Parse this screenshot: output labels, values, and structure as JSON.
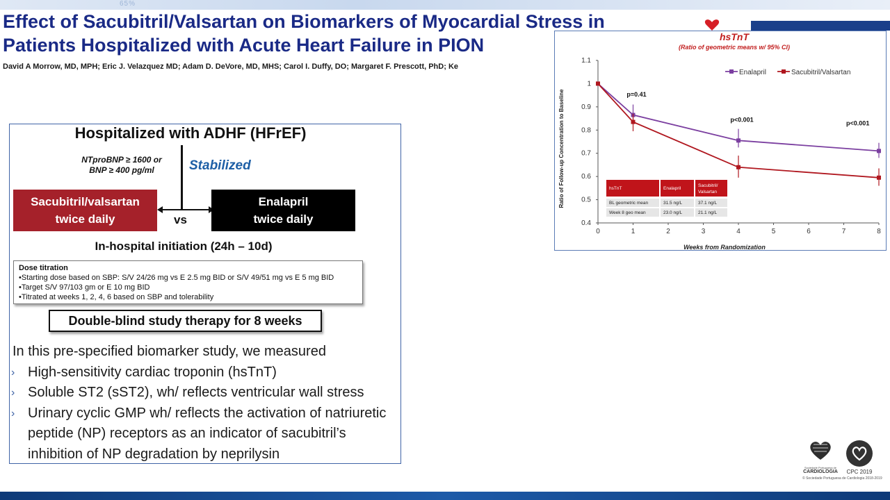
{
  "header": {
    "band_text": "65%",
    "title_line1": "Effect of Sacubitril/Valsartan on Biomarkers of Myocardial Stress in",
    "title_line2": "Patients Hospitalized with Acute Heart Failure in PION",
    "authors": "David A Morrow, MD, MPH; Eric J. Velazquez MD; Adam D. DeVore, MD, MHS; Carol I. Duffy, DO; Margaret F. Prescott, PhD; Ke"
  },
  "design": {
    "heading": "Hospitalized with ADHF (HFrEF)",
    "criteria_line1": "NTproBNP ≥ 1600 or",
    "criteria_line2": "BNP ≥ 400 pg/ml",
    "stabilized": "Stabilized",
    "arm_sv_line1": "Sacubitril/valsartan",
    "arm_sv_line2": "twice daily",
    "vs": "vs",
    "arm_e_line1": "Enalapril",
    "arm_e_line2": "twice daily",
    "initiation": "In-hospital initiation (24h – 10d)",
    "titration_title": "Dose titration",
    "titration_items": [
      "•Starting dose based on SBP:  S/V 24/26 mg vs E 2.5 mg BID or S/V 49/51 mg vs E 5 mg BID",
      "•Target S/V 97/103 gm or E 10 mg BID",
      "•Titrated at weeks 1, 2, 4, 6 based on SBP and tolerability"
    ],
    "double_blind": "Double-blind study therapy for 8 weeks"
  },
  "body": {
    "intro": "In this pre-specified biomarker study, we measured",
    "bullets": [
      "High-sensitivity cardiac troponin (hsTnT)",
      "Soluble ST2 (sST2), wh/ reflects ventricular wall stress",
      "Urinary cyclic GMP wh/ reflects the activation of natriuretic peptide (NP) receptors as an indicator of sacubitril’s inhibition of NP degradation by neprilysin"
    ]
  },
  "chart_data": {
    "type": "line",
    "title": "hsTnT",
    "subtitle": "(Ratio of geometric means w/ 95% CI)",
    "xlabel": "Weeks from Randomization",
    "ylabel": "Ratio of Follow-up Concentration to Baseline",
    "xlim": [
      0,
      8
    ],
    "ylim": [
      0.4,
      1.1
    ],
    "x_ticks": [
      "0",
      "1",
      "2",
      "3",
      "4",
      "5",
      "6",
      "7",
      "8"
    ],
    "y_ticks": [
      "0.4",
      "0.5",
      "0.6",
      "0.7",
      "0.8",
      "0.9",
      "1",
      "1.1"
    ],
    "legend_position": "top-right",
    "series": [
      {
        "name": "Enalapril",
        "color": "#7b3fa0",
        "x": [
          0,
          1,
          4,
          8
        ],
        "y": [
          1.0,
          0.865,
          0.755,
          0.71
        ],
        "ci_low": [
          1.0,
          0.835,
          0.725,
          0.68
        ],
        "ci_high": [
          1.0,
          0.91,
          0.805,
          0.745
        ]
      },
      {
        "name": "Sacubitril/Valsartan",
        "color": "#b0171f",
        "x": [
          0,
          1,
          4,
          8
        ],
        "y": [
          1.0,
          0.835,
          0.64,
          0.595
        ],
        "ci_low": [
          1.0,
          0.795,
          0.595,
          0.56
        ],
        "ci_high": [
          1.0,
          0.87,
          0.69,
          0.635
        ]
      }
    ],
    "annotations": [
      {
        "text": "p=0.41",
        "x": 1.1,
        "y": 0.945
      },
      {
        "text": "p<0.001",
        "x": 4.1,
        "y": 0.835
      },
      {
        "text": "p<0.001",
        "x": 7.4,
        "y": 0.82
      }
    ],
    "table": {
      "headers": [
        "hsTnT",
        "Enalapril",
        "Sacubitril/ Valsartan"
      ],
      "rows": [
        [
          "BL geometric mean",
          "31.5 ng/L",
          "37.1 ng/L"
        ],
        [
          "Week 8 geo mean",
          "23.0 ng/L",
          "21.1 ng/L"
        ]
      ]
    }
  },
  "logos": {
    "spc_org": "Sociedade Portuguesa de",
    "spc_name": "CARDIOLOGIA",
    "cpc_label": "CPC 2019",
    "copyright": "© Sociedade Portuguesa de Cardiologia 2018-2019"
  }
}
